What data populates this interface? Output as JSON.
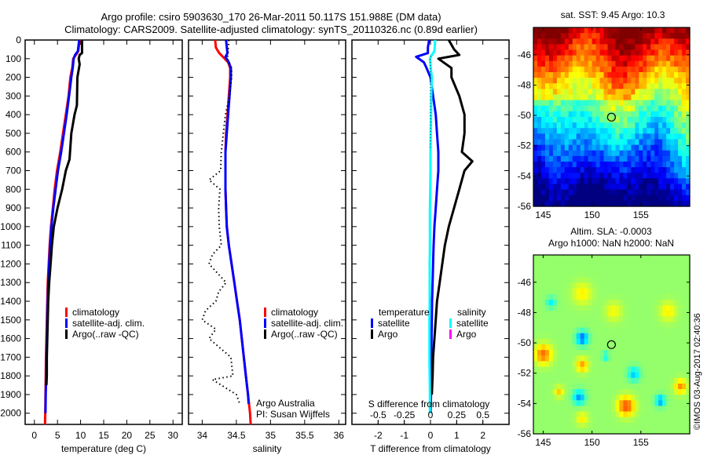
{
  "title": {
    "line1": "Argo profile: csiro 5903630_170 26-Mar-2011 50.117S 151.988E (DM data)",
    "line2": "Climatology: CARS2009. Satellite-adjusted climatology: synTS_20110326.nc (0.89d earlier)"
  },
  "credit": "©IMOS 03-Aug-2017 02:40:36",
  "chart_data": [
    {
      "id": "temperature",
      "type": "line",
      "xlabel": "temperature (deg C)",
      "ylabel": "",
      "xlim": [
        -2,
        32
      ],
      "ylim": [
        2060,
        0
      ],
      "xticks": [
        0,
        5,
        10,
        15,
        20,
        25,
        30
      ],
      "yticks": [
        0,
        100,
        200,
        300,
        400,
        500,
        600,
        700,
        800,
        900,
        1000,
        1100,
        1200,
        1300,
        1400,
        1500,
        1600,
        1700,
        1800,
        1900,
        2000
      ],
      "legend": [
        "climatology",
        "satellite-adj. clim.",
        "Argo(..raw -QC)"
      ],
      "legend_placement": "center",
      "series": [
        {
          "name": "climatology",
          "color": "#ff0000",
          "depth": [
            0,
            60,
            80,
            100,
            150,
            200,
            300,
            400,
            500,
            600,
            700,
            800,
            900,
            1000,
            1100,
            1200,
            1300,
            1400,
            1500,
            1600,
            1700,
            1800,
            1900,
            2000,
            2060
          ],
          "values": [
            9.8,
            9.5,
            9.0,
            8.4,
            8.2,
            7.8,
            7.4,
            6.8,
            6.2,
            5.6,
            4.9,
            4.4,
            4.0,
            3.6,
            3.3,
            3.1,
            2.9,
            2.8,
            2.7,
            2.6,
            2.5,
            2.45,
            2.4,
            2.35,
            2.3
          ]
        },
        {
          "name": "satellite-adj. clim.",
          "color": "#0000ff",
          "depth": [
            0,
            60,
            80,
            100,
            150,
            200,
            300,
            400,
            500,
            600,
            700,
            800,
            900,
            1000,
            1100,
            1200,
            1300,
            1400,
            1500,
            1600,
            1700,
            1800,
            1900,
            2000
          ],
          "values": [
            9.7,
            9.4,
            8.8,
            8.5,
            8.3,
            8.0,
            7.5,
            7.0,
            6.4,
            5.8,
            5.1,
            4.6,
            4.1,
            3.7,
            3.4,
            3.2,
            3.0,
            2.9,
            2.8,
            2.7,
            2.6,
            2.55,
            2.45,
            2.4
          ]
        },
        {
          "name": "Argo(..raw -QC)",
          "color": "#000000",
          "depth": [
            0,
            70,
            80,
            100,
            130,
            200,
            350,
            400,
            500,
            640,
            700,
            800,
            900,
            1000,
            1100,
            1200,
            1300,
            1400,
            1500,
            1600,
            1700,
            1800,
            1850
          ],
          "values": [
            10.3,
            10.3,
            9.8,
            9.6,
            9.8,
            9.3,
            9.2,
            8.7,
            8.0,
            7.6,
            6.8,
            6.0,
            5.0,
            4.2,
            3.8,
            3.5,
            3.2,
            3.0,
            2.9,
            2.8,
            2.7,
            2.7,
            2.6
          ]
        }
      ]
    },
    {
      "id": "salinity",
      "type": "line",
      "xlabel": "salinity",
      "xlim": [
        33.8,
        36.1
      ],
      "ylim": [
        2060,
        0
      ],
      "xticks": [
        34,
        34.5,
        35,
        35.5,
        36
      ],
      "legend": [
        "climatology",
        "satellite-adj. clim.",
        "Argo(..raw -QC)"
      ],
      "legend_placement": "center-right",
      "annotation": [
        "Argo Australia",
        "PI: Susan Wijffels"
      ],
      "series": [
        {
          "name": "climatology",
          "color": "#ff0000",
          "depth": [
            0,
            40,
            70,
            100,
            120,
            150,
            200,
            300,
            400,
            500,
            600,
            700,
            800,
            900,
            1000,
            1100,
            1200,
            1300,
            1400,
            1500,
            1600,
            1700,
            1800,
            1900,
            2000,
            2060
          ],
          "values": [
            34.19,
            34.2,
            34.25,
            34.33,
            34.38,
            34.41,
            34.41,
            34.39,
            34.37,
            34.35,
            34.34,
            34.34,
            34.34,
            34.35,
            34.36,
            34.39,
            34.43,
            34.47,
            34.51,
            34.55,
            34.58,
            34.61,
            34.64,
            34.67,
            34.7,
            34.71
          ]
        },
        {
          "name": "satellite-adj. clim.",
          "color": "#0000ff",
          "depth": [
            0,
            40,
            70,
            90,
            120,
            150,
            200,
            300,
            400,
            500,
            600,
            700,
            800,
            900,
            1000,
            1100,
            1200,
            1300,
            1400,
            1500,
            1600,
            1700,
            1800,
            1900,
            1950
          ],
          "values": [
            34.35,
            34.36,
            34.37,
            34.34,
            34.39,
            34.42,
            34.42,
            34.4,
            34.38,
            34.36,
            34.34,
            34.34,
            34.34,
            34.35,
            34.36,
            34.39,
            34.43,
            34.47,
            34.51,
            34.55,
            34.58,
            34.61,
            34.64,
            34.67,
            34.68
          ]
        },
        {
          "name": "Argo(..raw -QC)",
          "color": "#000000",
          "style": "dotted",
          "depth": [
            0,
            100,
            150,
            200,
            300,
            400,
            500,
            600,
            700,
            750,
            800,
            900,
            1000,
            1100,
            1150,
            1200,
            1300,
            1350,
            1400,
            1450,
            1500,
            1550,
            1600,
            1700,
            1800,
            1820,
            1900,
            1950
          ],
          "values": [
            34.39,
            34.37,
            34.43,
            34.43,
            34.4,
            34.34,
            34.31,
            34.28,
            34.27,
            34.1,
            34.26,
            34.24,
            34.25,
            34.28,
            34.15,
            34.1,
            34.35,
            34.24,
            34.2,
            34.05,
            34.0,
            34.2,
            34.1,
            34.42,
            34.45,
            34.15,
            34.5,
            34.55
          ]
        }
      ]
    },
    {
      "id": "differences",
      "type": "line",
      "xlabel": "T difference from climatology",
      "xlim": [
        -3,
        3
      ],
      "xticks": [
        -2,
        -1,
        0,
        1,
        2
      ],
      "x2label": "S difference from climatology",
      "x2lim": [
        -0.75,
        0.75
      ],
      "x2ticks": [
        -0.5,
        -0.25,
        0,
        0.25,
        0.5
      ],
      "ylim": [
        2060,
        0
      ],
      "legend_columns": [
        {
          "header": "temperature",
          "items": [
            {
              "label": "satellite",
              "color": "#0000ff"
            },
            {
              "label": "Argo",
              "color": "#000000"
            }
          ]
        },
        {
          "header": "salinity",
          "items": [
            {
              "label": "satellite",
              "color": "#00ffff"
            },
            {
              "label": "Argo",
              "color": "#ff00ff"
            }
          ]
        }
      ],
      "series": [
        {
          "name": "temperature satellite",
          "color": "#0000ff",
          "depth": [
            0,
            40,
            70,
            90,
            120,
            150,
            200,
            300,
            400,
            500,
            600,
            700,
            800,
            900,
            1000,
            1100,
            1200,
            1300,
            1400,
            1500,
            1600,
            1700,
            1800,
            1900,
            2000
          ],
          "values": [
            -0.05,
            -0.1,
            -0.1,
            -0.55,
            -0.25,
            -0.15,
            0.0,
            0.1,
            0.2,
            0.25,
            0.3,
            0.3,
            0.25,
            0.2,
            0.15,
            0.12,
            0.1,
            0.08,
            0.06,
            0.05,
            0.04,
            0.03,
            0.02,
            0.02,
            0.0
          ]
        },
        {
          "name": "temperature Argo",
          "color": "#000000",
          "depth": [
            0,
            50,
            80,
            100,
            150,
            200,
            300,
            400,
            500,
            600,
            650,
            700,
            750,
            800,
            900,
            1000,
            1100,
            1200,
            1300,
            1400,
            1500,
            1600,
            1700,
            1800,
            1900
          ],
          "values": [
            0.7,
            0.9,
            1.1,
            0.3,
            0.8,
            0.8,
            1.1,
            1.3,
            1.3,
            1.2,
            1.6,
            1.3,
            1.2,
            1.1,
            0.9,
            0.7,
            0.55,
            0.45,
            0.35,
            0.25,
            0.2,
            0.15,
            0.1,
            0.08,
            0.05
          ]
        },
        {
          "name": "salinity satellite",
          "color": "#00ffff",
          "depth": [
            0,
            60,
            80,
            100,
            150,
            200,
            300,
            400,
            500,
            600,
            700,
            800,
            900,
            1000,
            1100,
            1200,
            1300,
            1400,
            1500,
            1600,
            1700,
            1800,
            1900,
            2000
          ],
          "values": [
            0.18,
            0.15,
            0.05,
            -0.02,
            0.01,
            0.05,
            0.03,
            0.02,
            0.01,
            0.0,
            0.0,
            -0.01,
            -0.02,
            -0.02,
            -0.02,
            -0.03,
            -0.03,
            -0.03,
            -0.04,
            -0.04,
            -0.04,
            -0.03,
            -0.02,
            -0.02
          ]
        }
      ]
    },
    {
      "id": "sst-map",
      "type": "heatmap",
      "title": "sat. SST: 9.45 Argo: 10.3",
      "xlim": [
        144,
        160
      ],
      "ylim": [
        -56,
        -44.2
      ],
      "xticks": [
        145,
        150,
        155
      ],
      "yticks": [
        -46,
        -48,
        -50,
        -52,
        -54,
        -56
      ],
      "marker": {
        "lon": 151.988,
        "lat": -50.117
      },
      "colormap": "jet"
    },
    {
      "id": "sla-map",
      "type": "heatmap",
      "title": "Altim. SLA: -0.0003",
      "subtitle": "Argo h1000: NaN h2000: NaN",
      "xlim": [
        144,
        160
      ],
      "ylim": [
        -56,
        -44.2
      ],
      "xticks": [
        145,
        150,
        155
      ],
      "yticks": [
        -46,
        -48,
        -50,
        -52,
        -54,
        -56
      ],
      "marker": {
        "lon": 151.988,
        "lat": -50.117
      },
      "colormap": "jet"
    }
  ]
}
